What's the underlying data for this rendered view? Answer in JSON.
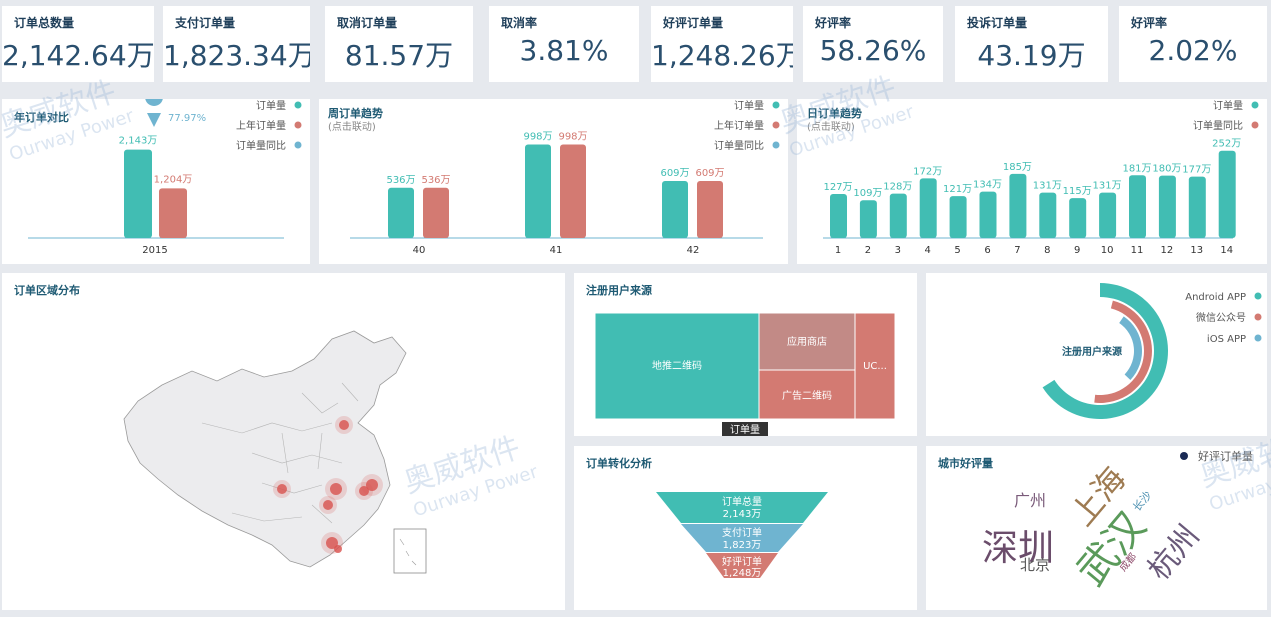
{
  "kpis": [
    {
      "label": "订单总数量",
      "value": "2,142.64万"
    },
    {
      "label": "支付订单量",
      "value": "1,823.34万"
    },
    {
      "label": "取消订单量",
      "value": "81.57万"
    },
    {
      "label": "取消率",
      "value": "3.81%"
    },
    {
      "label": "好评订单量",
      "value": "1,248.26万"
    },
    {
      "label": "好评率",
      "value": "58.26%"
    },
    {
      "label": "投诉订单量",
      "value": "43.19万"
    },
    {
      "label": "好评率",
      "value": "2.02%"
    }
  ],
  "watermark": {
    "line1": "奥威软件",
    "line2": "Ourway Power"
  },
  "year_panel": {
    "title": "年订单对比",
    "legend": [
      "订单量",
      "上年订单量",
      "订单量同比"
    ],
    "pin_label": "77.97%"
  },
  "week_panel": {
    "title": "周订单趋势",
    "subtitle": "(点击联动)",
    "legend": [
      "订单量",
      "上年订单量",
      "订单量同比"
    ]
  },
  "day_panel": {
    "title": "日订单趋势",
    "subtitle": "(点击联动)",
    "legend": [
      "订单量",
      "订单量同比"
    ]
  },
  "region_panel": {
    "title": "订单区域分布"
  },
  "source_panel": {
    "title": "注册用户来源",
    "tooltip": "订单量"
  },
  "treemap": {
    "cells": [
      {
        "label": "地推二维码",
        "value": 47
      },
      {
        "label": "应用商店",
        "value": 19
      },
      {
        "label": "广告二维码",
        "value": 18
      },
      {
        "label": "UC...",
        "value": 16
      }
    ]
  },
  "ring_panel": {
    "center": "注册用户来源",
    "legend": [
      "Android APP",
      "微信公众号",
      "iOS APP"
    ]
  },
  "funnel_panel": {
    "title": "订单转化分析",
    "stages": [
      {
        "name": "订单总量",
        "value": "2,143万"
      },
      {
        "name": "支付订单",
        "value": "1,823万"
      },
      {
        "name": "好评订单",
        "value": "1,248万"
      }
    ]
  },
  "city_panel": {
    "title": "城市好评量",
    "legend": "好评订单量",
    "words": [
      {
        "text": "广州",
        "color": "#7a5b7a"
      },
      {
        "text": "上海",
        "color": "#9e7b52"
      },
      {
        "text": "深圳",
        "color": "#6b4d6b"
      },
      {
        "text": "武汉",
        "color": "#5a9a5a"
      },
      {
        "text": "杭州",
        "color": "#6a5a7a"
      },
      {
        "text": "北京",
        "color": "#5a5a5a"
      },
      {
        "text": "长沙",
        "color": "#4a8fb0"
      },
      {
        "text": "成都",
        "color": "#8e4a6a"
      }
    ]
  },
  "colors": {
    "teal": "#41bdb3",
    "salmon": "#d37a72",
    "blue": "#6fb4d0",
    "title": "#1e5a73"
  },
  "chart_data": [
    {
      "type": "bar",
      "title": "年订单对比",
      "categories": [
        "2015"
      ],
      "series": [
        {
          "name": "订单量",
          "values": [
            2143
          ],
          "labels": [
            "2,143万"
          ]
        },
        {
          "name": "上年订单量",
          "values": [
            1204
          ],
          "labels": [
            "1,204万"
          ]
        },
        {
          "name": "订单量同比",
          "values": [
            77.97
          ],
          "labels": [
            "77.97%"
          ]
        }
      ],
      "ylim": [
        0,
        2400
      ]
    },
    {
      "type": "bar",
      "title": "周订单趋势",
      "categories": [
        "40",
        "41",
        "42"
      ],
      "series": [
        {
          "name": "订单量",
          "values": [
            536,
            998,
            609
          ],
          "labels": [
            "536万",
            "998万",
            "609万"
          ]
        },
        {
          "name": "上年订单量",
          "values": [
            536,
            998,
            609
          ],
          "labels": [
            "536万",
            "998万",
            "609万"
          ]
        }
      ],
      "ylim": [
        0,
        1100
      ]
    },
    {
      "type": "bar",
      "title": "日订单趋势",
      "categories": [
        "1",
        "2",
        "3",
        "4",
        "5",
        "6",
        "7",
        "8",
        "9",
        "10",
        "11",
        "12",
        "13",
        "14"
      ],
      "series": [
        {
          "name": "订单量",
          "values": [
            127,
            109,
            128,
            172,
            121,
            134,
            185,
            131,
            115,
            131,
            181,
            180,
            177,
            252
          ],
          "labels": [
            "127万",
            "109万",
            "128万",
            "172万",
            "121万",
            "134万",
            "185万",
            "131万",
            "115万",
            "131万",
            "181万",
            "180万",
            "177万",
            "252万"
          ]
        }
      ],
      "ylim": [
        0,
        280
      ]
    },
    {
      "type": "pie",
      "title": "注册用户来源",
      "categories": [
        "Android APP",
        "微信公众号",
        "iOS APP"
      ],
      "values": [
        55,
        30,
        15
      ]
    }
  ]
}
